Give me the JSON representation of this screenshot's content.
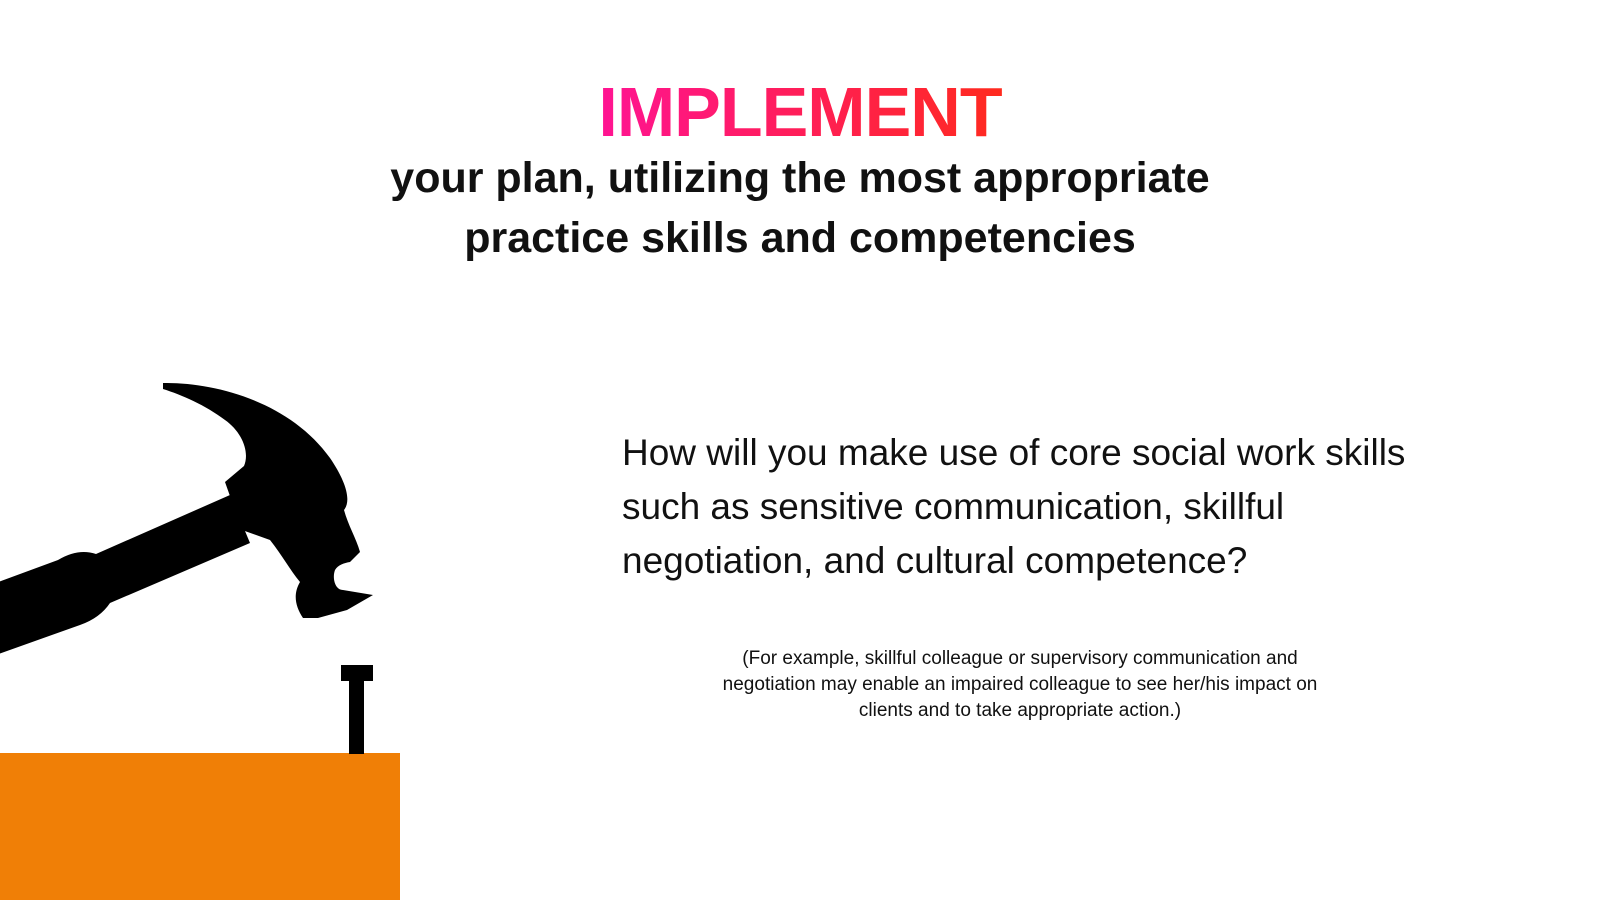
{
  "slide": {
    "title": "IMPLEMENT",
    "subtitle_lines": [
      "your plan, utilizing the most appropriate",
      "practice skills and competencies"
    ],
    "question_lines": [
      "How will you make use of core social work skills",
      "such as sensitive communication, skillful",
      "negotiation, and cultural competence?"
    ],
    "example_lines": [
      "(For example, skillful colleague or supervisory communication and",
      "negotiation may enable an impaired colleague to see her/his impact on",
      "clients and to take appropriate action.)"
    ]
  },
  "illustration": {
    "hammer_icon": "hammer-icon",
    "nail_icon": "nail-icon",
    "block_color": "#f07f06",
    "silhouette_color": "#000000"
  },
  "colors": {
    "title_gradient_start": "#ff1493",
    "title_gradient_end": "#ff2a1e",
    "text": "#111111",
    "background": "#ffffff"
  }
}
